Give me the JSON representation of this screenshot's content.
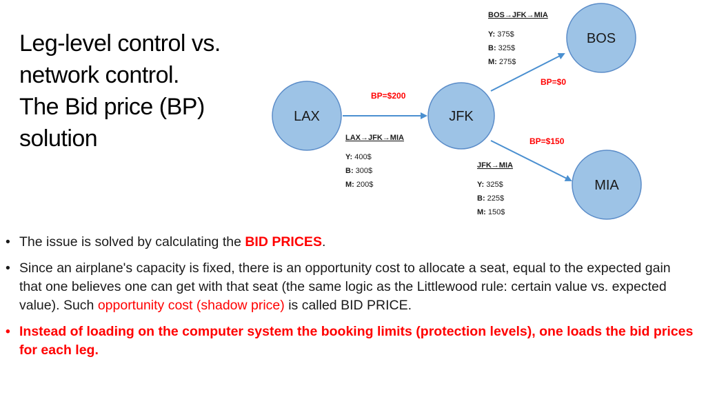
{
  "title_lines": [
    "Leg-level control vs.",
    "network control.",
    "The Bid price (BP)",
    "solution"
  ],
  "diagram": {
    "nodes": {
      "lax": "LAX",
      "jfk": "JFK",
      "bos": "BOS",
      "mia": "MIA"
    },
    "bid_prices": {
      "lax_jfk": "BP=$200",
      "jfk_bos": "BP=$0",
      "jfk_mia": "BP=$150"
    },
    "fare_boxes": {
      "bos_jfk_mia": {
        "title": "BOS→JFK→MIA",
        "fares": [
          {
            "cls": "Y:",
            "val": " 375$"
          },
          {
            "cls": "B:",
            "val": " 325$"
          },
          {
            "cls": "M:",
            "val": " 275$"
          }
        ]
      },
      "lax_jfk_mia": {
        "title": "LAX→JFK→MIA",
        "fares": [
          {
            "cls": "Y:",
            "val": " 400$"
          },
          {
            "cls": "B:",
            "val": " 300$"
          },
          {
            "cls": "M:",
            "val": " 200$"
          }
        ]
      },
      "jfk_mia": {
        "title": "JFK→MIA",
        "fares": [
          {
            "cls": "Y:",
            "val": " 325$"
          },
          {
            "cls": "B:",
            "val": " 225$"
          },
          {
            "cls": "M:",
            "val": " 150$"
          }
        ]
      }
    },
    "colors": {
      "node_fill": "#9dc3e6",
      "node_stroke": "#5b8cc8",
      "edge": "#4a8fd0",
      "bid_price": "#ff0000"
    }
  },
  "bullets": {
    "b1": {
      "pre": "The issue is solved by calculating the ",
      "highlight": "BID PRICES",
      "post": "."
    },
    "b2": {
      "pre": "Since an airplane's capacity is fixed, there is an opportunity cost to allocate a seat, equal to the expected gain that one believes one can get with that seat (the same logic as the Littlewood rule: certain value vs. expected value). Such ",
      "highlight": "opportunity cost (shadow price)",
      "post": " is called BID PRICE."
    },
    "b3": {
      "text": "Instead of loading on the computer system the booking limits (protection levels), one loads the bid prices for each leg."
    }
  }
}
